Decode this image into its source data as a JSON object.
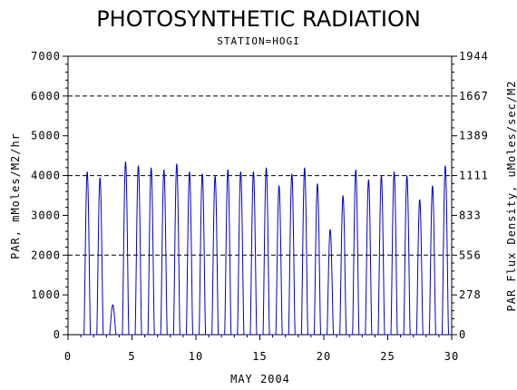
{
  "chart_data": {
    "type": "line",
    "title": "PHOTOSYNTHETIC RADIATION",
    "subtitle": "STATION=HOGI",
    "xlabel": "MAY 2004",
    "ylabel": "PAR, mMoles/M2/hr",
    "y2label": "PAR Flux Density, uMoles/sec/M2",
    "xlim": [
      0,
      30
    ],
    "ylim": [
      0,
      7000
    ],
    "x_ticks": [
      "0",
      "5",
      "10",
      "15",
      "20",
      "25",
      "30"
    ],
    "y_ticks": [
      "0",
      "1000",
      "2000",
      "3000",
      "4000",
      "5000",
      "6000",
      "7000"
    ],
    "y2_ticks": [
      "0",
      "278",
      "556",
      "833",
      "1111",
      "1389",
      "1667",
      "1944"
    ],
    "gridlines_y": [
      2000,
      4000,
      6000
    ],
    "series_color": "#0000cc",
    "series": [
      {
        "x_start_day": 1,
        "daily_peaks": [
          4100,
          3950,
          750,
          4350,
          4250,
          4200,
          4150,
          4300,
          4100,
          4050,
          4000,
          4150,
          4100,
          4100,
          4200,
          3750,
          4050,
          4200,
          3800,
          2650,
          3500,
          4150,
          3900,
          4000,
          4100,
          4000,
          3400,
          3750,
          4250
        ]
      }
    ]
  }
}
